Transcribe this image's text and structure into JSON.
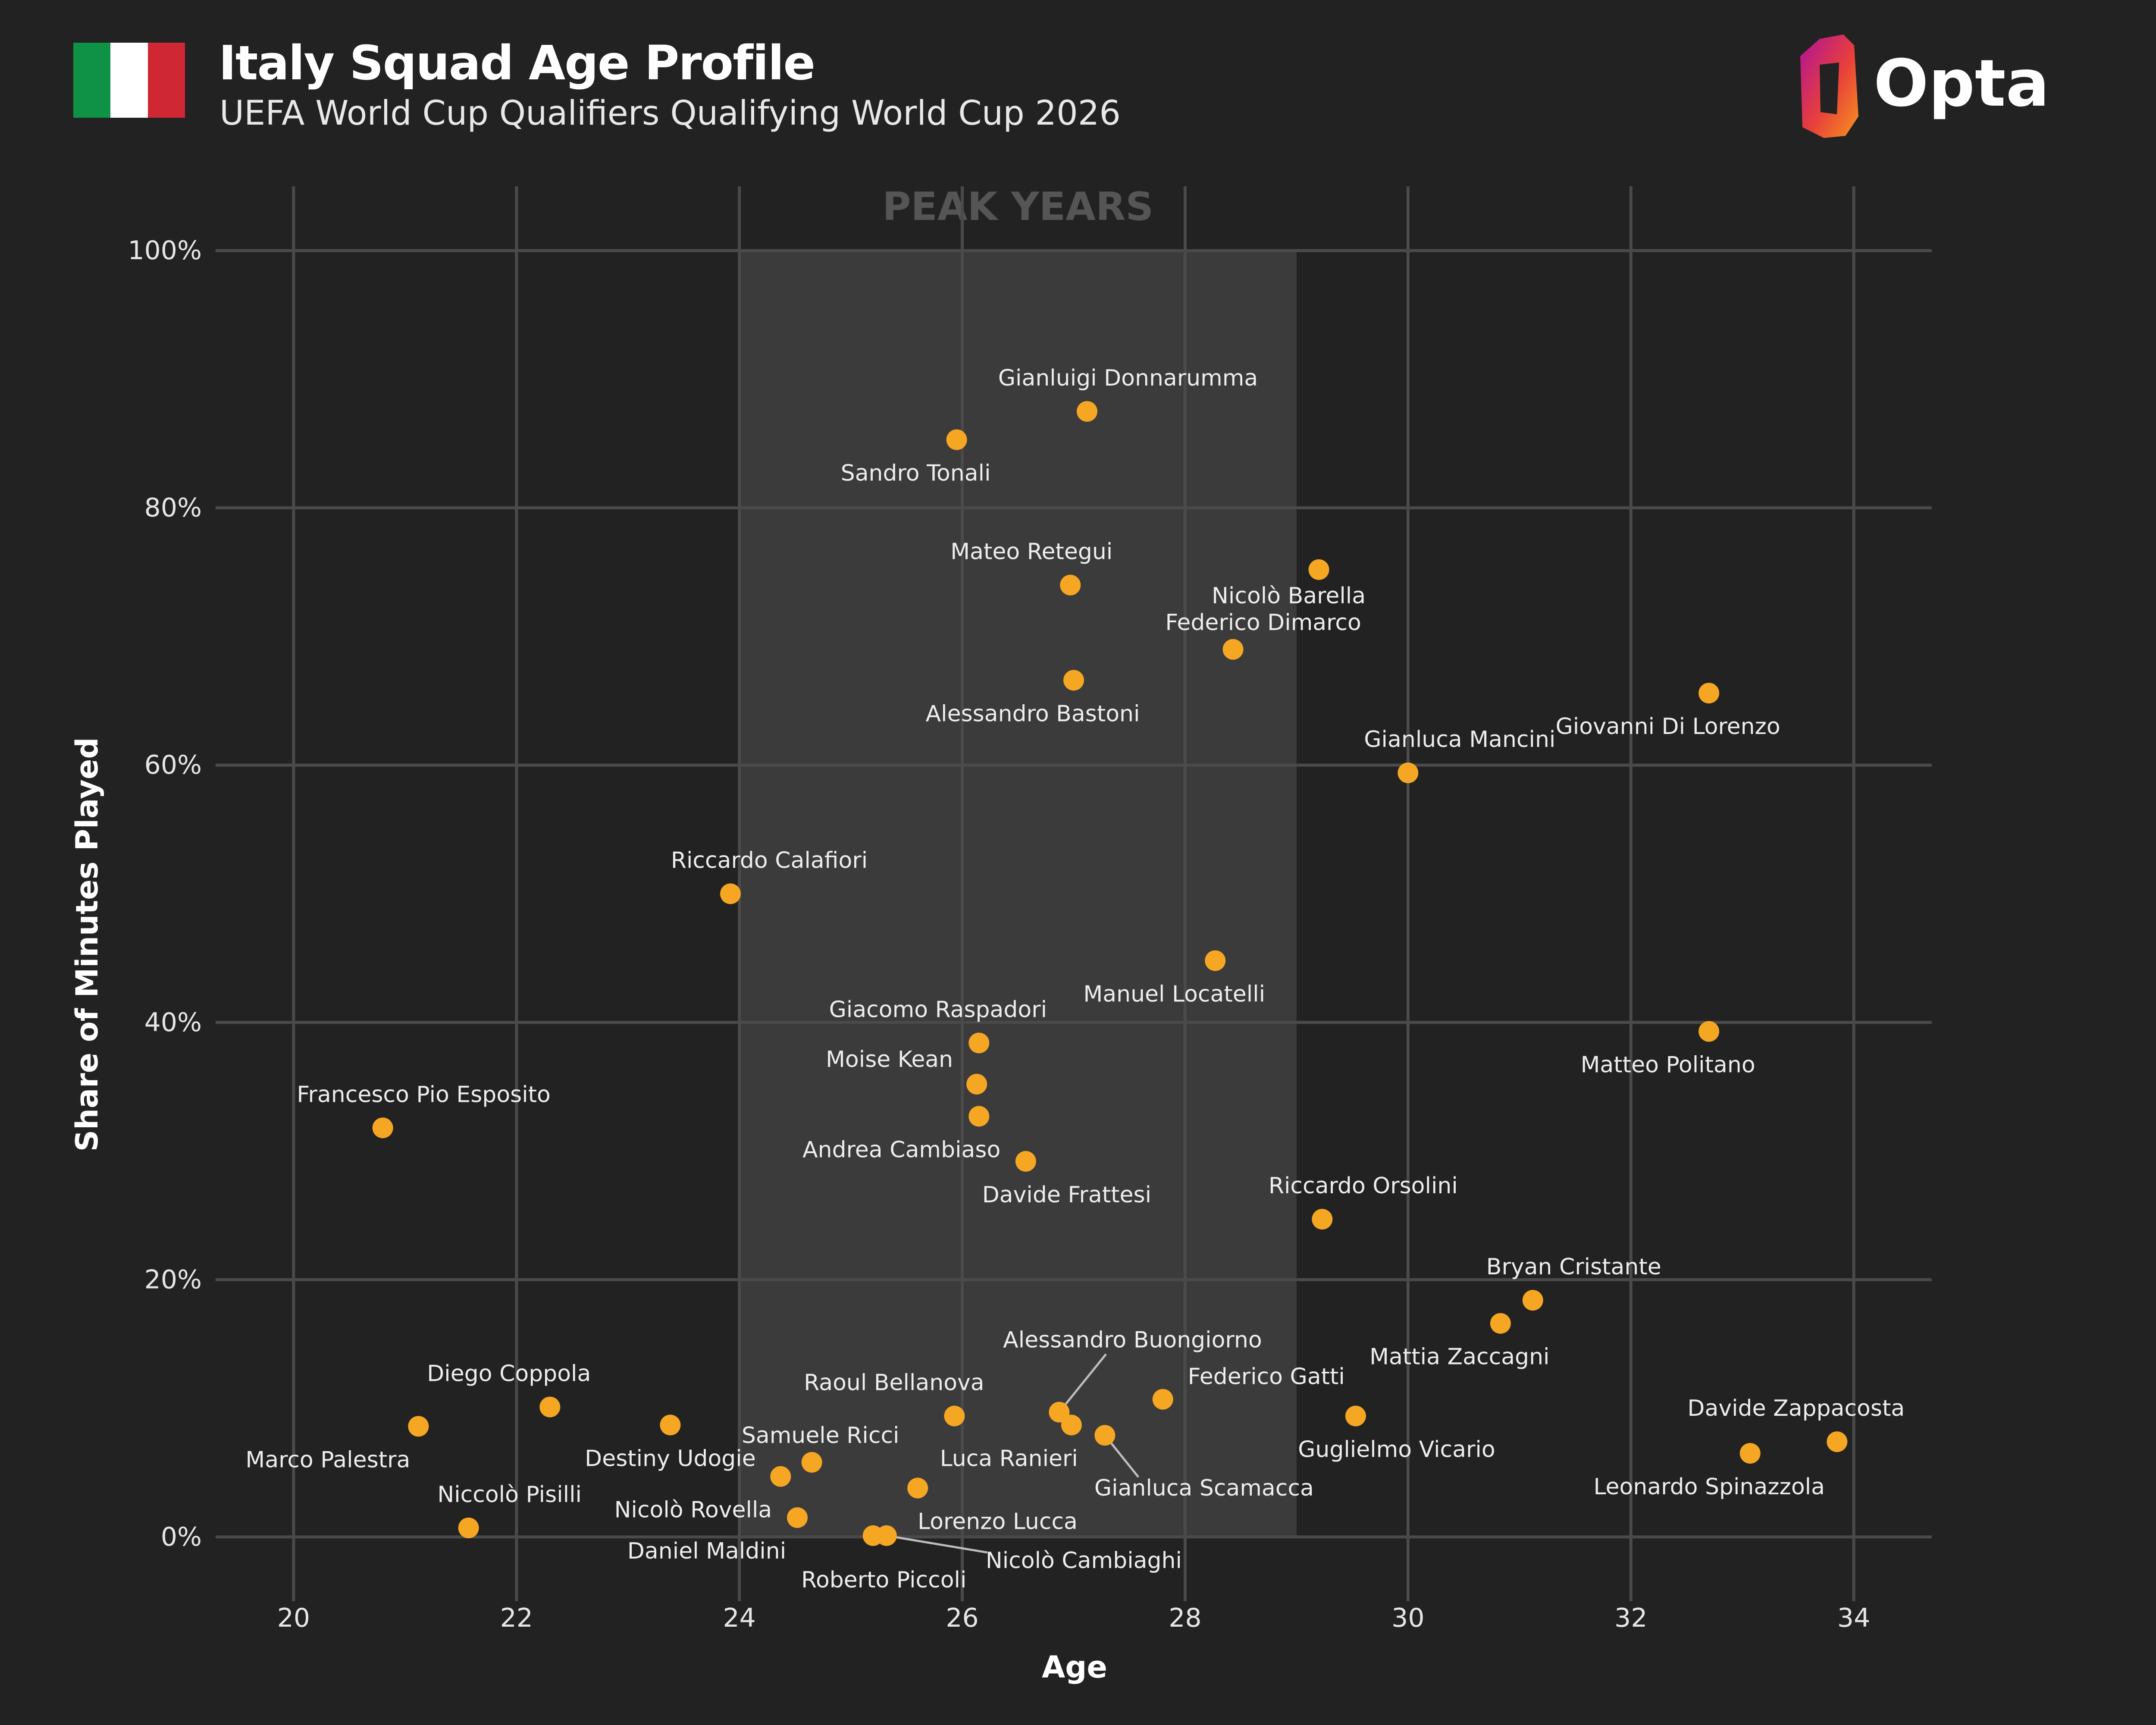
{
  "header": {
    "title": "Italy Squad Age Profile",
    "subtitle": "UEFA World Cup Qualifiers Qualifying World Cup 2026",
    "flag_colors": [
      "#0f9245",
      "#ffffff",
      "#cf2734"
    ],
    "logo_text": "Opta"
  },
  "colors": {
    "background": "#222222",
    "point": "#f5a623",
    "peak_band": "#3b3b3b",
    "grid": "#4a4a4a"
  },
  "chart_data": {
    "type": "scatter",
    "xlabel": "Age",
    "ylabel": "Share of Minutes Played",
    "xlim": [
      19.3,
      34.7
    ],
    "ylim": [
      -0.05,
      1.05
    ],
    "x_ticks": [
      20,
      22,
      24,
      26,
      28,
      30,
      32,
      34
    ],
    "y_ticks": [
      0,
      0.2,
      0.4,
      0.6,
      0.8,
      1.0
    ],
    "y_tick_labels": [
      "0%",
      "20%",
      "40%",
      "60%",
      "80%",
      "100%"
    ],
    "grid": true,
    "peak_band": {
      "label": "PEAK YEARS",
      "x_start": 24,
      "x_end": 29
    },
    "points": [
      {
        "name": "Gianluigi Donnarumma",
        "x": 27.12,
        "y": 0.875
      },
      {
        "name": "Sandro Tonali",
        "x": 25.95,
        "y": 0.853
      },
      {
        "name": "Nicolò Barella",
        "x": 29.2,
        "y": 0.752
      },
      {
        "name": "Mateo Retegui",
        "x": 26.97,
        "y": 0.74
      },
      {
        "name": "Federico Dimarco",
        "x": 28.43,
        "y": 0.69
      },
      {
        "name": "Alessandro Bastoni",
        "x": 27.0,
        "y": 0.666
      },
      {
        "name": "Giovanni Di Lorenzo",
        "x": 32.7,
        "y": 0.656
      },
      {
        "name": "Gianluca Mancini",
        "x": 30.0,
        "y": 0.594
      },
      {
        "name": "Riccardo Calafiori",
        "x": 23.92,
        "y": 0.5
      },
      {
        "name": "Manuel Locatelli",
        "x": 28.27,
        "y": 0.448
      },
      {
        "name": "Matteo Politano",
        "x": 32.7,
        "y": 0.393
      },
      {
        "name": "Giacomo Raspadori",
        "x": 26.15,
        "y": 0.384
      },
      {
        "name": "Moise Kean",
        "x": 26.13,
        "y": 0.352
      },
      {
        "name": "Andrea Cambiaso",
        "x": 26.15,
        "y": 0.327
      },
      {
        "name": "Francesco Pio Esposito",
        "x": 20.8,
        "y": 0.318
      },
      {
        "name": "Davide Frattesi",
        "x": 26.57,
        "y": 0.292
      },
      {
        "name": "Riccardo Orsolini",
        "x": 29.23,
        "y": 0.247
      },
      {
        "name": "Bryan Cristante",
        "x": 31.12,
        "y": 0.184
      },
      {
        "name": "Mattia Zaccagni",
        "x": 30.83,
        "y": 0.166
      },
      {
        "name": "Federico Gatti",
        "x": 27.8,
        "y": 0.107
      },
      {
        "name": "Diego Coppola",
        "x": 22.3,
        "y": 0.101
      },
      {
        "name": "Alessandro Buongiorno",
        "x": 26.87,
        "y": 0.097
      },
      {
        "name": "Raoul Bellanova",
        "x": 25.93,
        "y": 0.094
      },
      {
        "name": "Guglielmo Vicario",
        "x": 29.53,
        "y": 0.094
      },
      {
        "name": "Marco Palestra",
        "x": 21.12,
        "y": 0.086
      },
      {
        "name": "Destiny Udogie",
        "x": 23.38,
        "y": 0.087
      },
      {
        "name": "Luca Ranieri",
        "x": 26.98,
        "y": 0.087
      },
      {
        "name": "Gianluca Scamacca",
        "x": 27.28,
        "y": 0.079
      },
      {
        "name": "Davide Zappacosta",
        "x": 33.85,
        "y": 0.074
      },
      {
        "name": "Leonardo Spinazzola",
        "x": 33.07,
        "y": 0.065
      },
      {
        "name": "Samuele Ricci",
        "x": 24.65,
        "y": 0.058
      },
      {
        "name": "Nicolò Rovella",
        "x": 24.37,
        "y": 0.047
      },
      {
        "name": "Lorenzo Lucca",
        "x": 25.6,
        "y": 0.038
      },
      {
        "name": "Daniel Maldini",
        "x": 24.52,
        "y": 0.015
      },
      {
        "name": "Niccolò Pisilli",
        "x": 21.57,
        "y": 0.007
      },
      {
        "name": "Roberto Piccoli",
        "x": 25.2,
        "y": 0.001
      },
      {
        "name": "Nicolò Cambiaghi",
        "x": 25.32,
        "y": 0.001
      }
    ]
  }
}
